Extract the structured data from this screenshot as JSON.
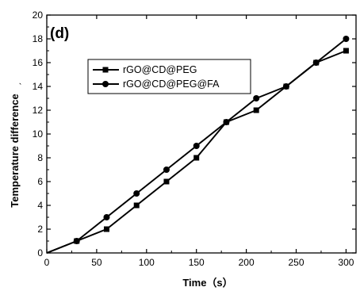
{
  "chart_data": {
    "type": "line",
    "panel_label": "(d)",
    "xlabel": "Time（s）",
    "ylabel": "Temperature difference",
    "ylabel_unit_mark": "ˏ",
    "xlim": [
      0,
      310
    ],
    "ylim": [
      0,
      20
    ],
    "xticks": [
      0,
      50,
      100,
      150,
      200,
      250,
      300
    ],
    "yticks": [
      0,
      2,
      4,
      6,
      8,
      10,
      12,
      14,
      16,
      18,
      20
    ],
    "grid": false,
    "legend_position": "upper-left",
    "series": [
      {
        "name": "rGO@CD@PEG",
        "marker": "square",
        "color": "#000000",
        "x": [
          0,
          30,
          60,
          90,
          120,
          150,
          180,
          210,
          240,
          270,
          300
        ],
        "y": [
          0,
          1,
          2,
          4,
          6,
          8,
          11,
          12,
          14,
          16,
          17
        ]
      },
      {
        "name": "rGO@CD@PEG@FA",
        "marker": "circle",
        "color": "#000000",
        "x": [
          0,
          30,
          60,
          90,
          120,
          150,
          180,
          210,
          240,
          270,
          300
        ],
        "y": [
          0,
          1,
          3,
          5,
          7,
          9,
          11,
          13,
          14,
          16,
          18
        ]
      }
    ]
  }
}
